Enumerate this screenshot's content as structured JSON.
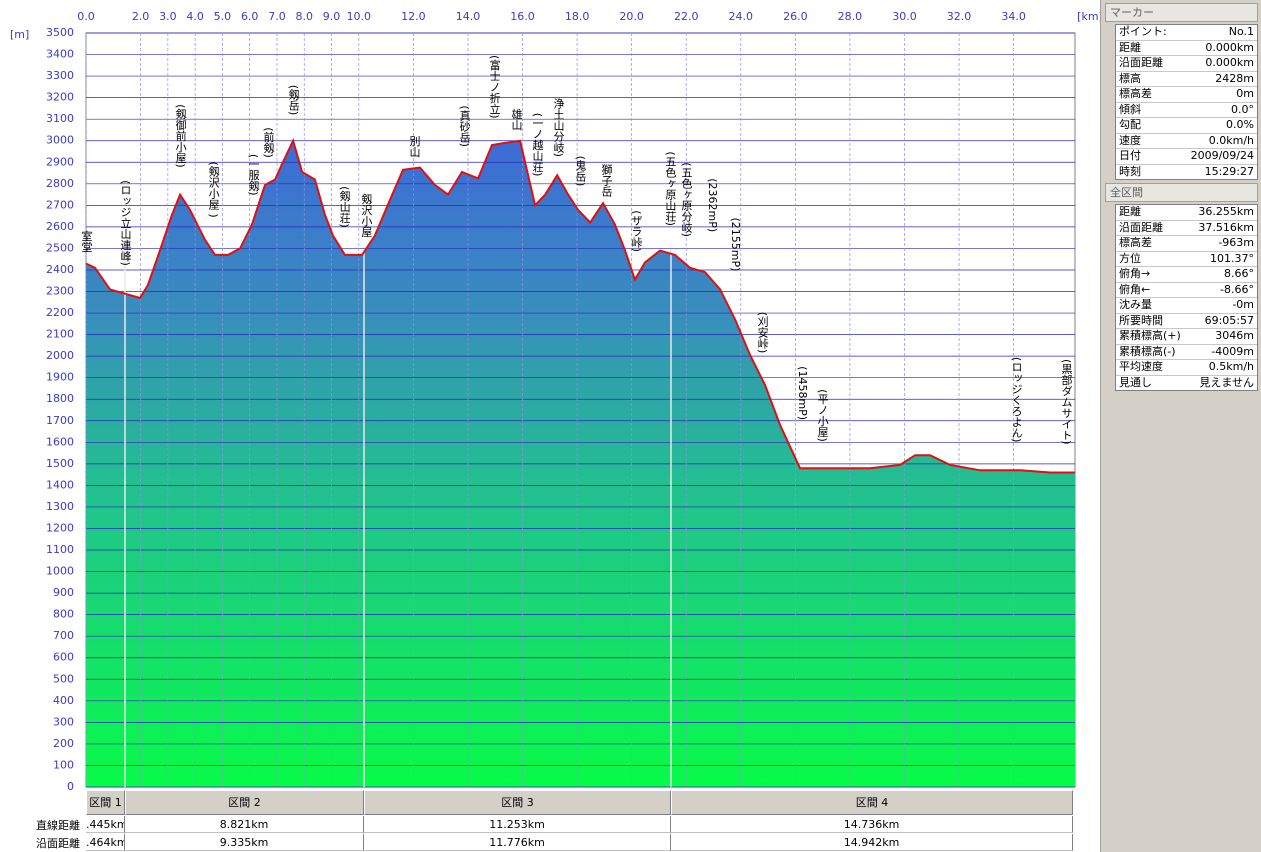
{
  "chart_data": {
    "type": "area",
    "x_label": "[km]",
    "y_label": "[m]",
    "xlim": [
      0,
      36.25
    ],
    "ylim": [
      0,
      3500
    ],
    "xticks": [
      {
        "value": 0,
        "label": "0.0"
      },
      {
        "value": 2,
        "label": "2.0"
      },
      {
        "value": 3,
        "label": "3.0"
      },
      {
        "value": 4,
        "label": "4.0"
      },
      {
        "value": 5,
        "label": "5.0"
      },
      {
        "value": 6,
        "label": "6.0"
      },
      {
        "value": 7,
        "label": "7.0"
      },
      {
        "value": 8,
        "label": "8.0"
      },
      {
        "value": 9,
        "label": "9.0"
      },
      {
        "value": 10,
        "label": "10.0"
      },
      {
        "value": 12,
        "label": "12.0"
      },
      {
        "value": 14,
        "label": "14.0"
      },
      {
        "value": 16,
        "label": "16.0"
      },
      {
        "value": 18,
        "label": "18.0"
      },
      {
        "value": 20,
        "label": "20.0"
      },
      {
        "value": 22,
        "label": "22.0"
      },
      {
        "value": 24,
        "label": "24.0"
      },
      {
        "value": 26,
        "label": "26.0"
      },
      {
        "value": 28,
        "label": "28.0"
      },
      {
        "value": 30,
        "label": "30.0"
      },
      {
        "value": 32,
        "label": "32.0"
      },
      {
        "value": 34,
        "label": "34.0"
      }
    ],
    "yticks": [
      0,
      100,
      200,
      300,
      400,
      500,
      600,
      700,
      800,
      900,
      1000,
      1100,
      1200,
      1300,
      1400,
      1500,
      1600,
      1700,
      1800,
      1900,
      2000,
      2100,
      2200,
      2300,
      2400,
      2500,
      2600,
      2700,
      2800,
      2900,
      3000,
      3100,
      3200,
      3300,
      3400,
      3500
    ],
    "grid": true,
    "color": "#e01010",
    "x": [
      0,
      0.33,
      0.88,
      1.43,
      1.98,
      2.27,
      2.71,
      3.15,
      3.45,
      3.81,
      4.36,
      4.73,
      5.21,
      5.65,
      6.08,
      6.56,
      6.93,
      7.18,
      7.59,
      7.92,
      8.39,
      8.76,
      9.05,
      9.49,
      10.12,
      10.59,
      11.14,
      11.62,
      12.24,
      12.79,
      13.27,
      13.78,
      14.37,
      14.88,
      15.36,
      15.91,
      16.46,
      16.83,
      17.27,
      17.67,
      18.03,
      18.48,
      18.95,
      19.39,
      19.76,
      20.12,
      20.49,
      21.04,
      21.59,
      22.14,
      22.69,
      23.24,
      23.79,
      24.34,
      24.89,
      25.44,
      26.17,
      27.27,
      28.74,
      29.84,
      30.39,
      30.94,
      31.67,
      32.77,
      34.24,
      35.34,
      36.25
    ],
    "values": [
      2430,
      2410,
      2310,
      2290,
      2270,
      2330,
      2490,
      2655,
      2750,
      2680,
      2540,
      2470,
      2470,
      2500,
      2610,
      2795,
      2820,
      2890,
      3000,
      2855,
      2820,
      2655,
      2560,
      2470,
      2470,
      2560,
      2725,
      2865,
      2875,
      2795,
      2750,
      2855,
      2825,
      2980,
      2990,
      3000,
      2700,
      2750,
      2840,
      2750,
      2680,
      2620,
      2710,
      2610,
      2490,
      2355,
      2435,
      2490,
      2470,
      2410,
      2390,
      2310,
      2170,
      2005,
      1865,
      1680,
      1480,
      1480,
      1480,
      1495,
      1540,
      1540,
      1495,
      1470,
      1470,
      1460,
      1460
    ],
    "annotations": [
      {
        "text": "室堂",
        "x": 0.0
      },
      {
        "text": "(ロッジ立山連峰)",
        "x": 1.43
      },
      {
        "text": "(剱御前小屋)",
        "x": 3.45
      },
      {
        "text": "(剱沢小屋 )",
        "x": 4.66
      },
      {
        "text": "(一服剱)",
        "x": 6.12
      },
      {
        "text": "(前剱)",
        "x": 6.67
      },
      {
        "text": "(剱岳)",
        "x": 7.59
      },
      {
        "text": "(剱山荘)",
        "x": 9.46
      },
      {
        "text": "剱沢小屋",
        "x": 10.26
      },
      {
        "text": "別山",
        "x": 12.02
      },
      {
        "text": "(真砂岳)",
        "x": 13.86
      },
      {
        "text": "(富士ノ折立)",
        "x": 14.96
      },
      {
        "text": "雄山",
        "x": 15.76
      },
      {
        "text": "(一ノ越山荘)",
        "x": 16.53
      },
      {
        "text": "浄土山分岐)",
        "x": 17.3
      },
      {
        "text": "(鬼岳)",
        "x": 18.1
      },
      {
        "text": "獅子岳",
        "x": 19.06
      },
      {
        "text": "(ザラ峠)",
        "x": 20.16
      },
      {
        "text": "(五色ヶ原山荘)",
        "x": 21.4
      },
      {
        "text": "(五色ヶ原分岐)",
        "x": 21.99
      },
      {
        "text": "(2362mP)",
        "x": 22.95
      },
      {
        "text": "(2155mP)",
        "x": 23.79
      },
      {
        "text": "(刈安峠)",
        "x": 24.78
      },
      {
        "text": "(1458mP)",
        "x": 26.25
      },
      {
        "text": "(平ノ小屋)",
        "x": 26.98
      },
      {
        "text": "(ロッジくろよん)",
        "x": 34.09
      },
      {
        "text": "(黒部ダムサイト)",
        "x": 35.92
      }
    ]
  },
  "sections": {
    "row_labels": [
      "直線距離",
      "沿面距離"
    ],
    "items": [
      {
        "name": "区間 1",
        "straight": ".445km",
        "surface": ".464km"
      },
      {
        "name": "区間 2",
        "straight": "8.821km",
        "surface": "9.335km"
      },
      {
        "name": "区間 3",
        "straight": "11.253km",
        "surface": "11.776km"
      },
      {
        "name": "区間 4",
        "straight": "14.736km",
        "surface": "14.942km"
      }
    ]
  },
  "marker_panel": {
    "title": "マーカー",
    "rows": [
      [
        "ポイント:",
        "No.1"
      ],
      [
        "距離",
        "0.000km"
      ],
      [
        "沿面距離",
        "0.000km"
      ],
      [
        "標高",
        "2428m"
      ],
      [
        "標高差",
        "0m"
      ],
      [
        "傾斜",
        "0.0°"
      ],
      [
        "勾配",
        "0.0%"
      ],
      [
        "速度",
        "0.0km/h"
      ],
      [
        "日付",
        "2009/09/24"
      ],
      [
        "時刻",
        "15:29:27"
      ]
    ]
  },
  "total_panel": {
    "title": "全区間",
    "rows": [
      [
        "距離",
        "36.255km"
      ],
      [
        "沿面距離",
        "37.516km"
      ],
      [
        "標高差",
        "-963m"
      ],
      [
        "方位",
        "101.37°"
      ],
      [
        "俯角→",
        "8.66°"
      ],
      [
        "俯角←",
        "-8.66°"
      ],
      [
        "沈み量",
        "-0m"
      ],
      [
        "所要時間",
        "69:05:57"
      ],
      [
        "累積標高(+)",
        "3046m"
      ],
      [
        "累積標高(-)",
        "-4009m"
      ],
      [
        "平均速度",
        "0.5km/h"
      ],
      [
        "見通し",
        "見えません"
      ]
    ]
  }
}
